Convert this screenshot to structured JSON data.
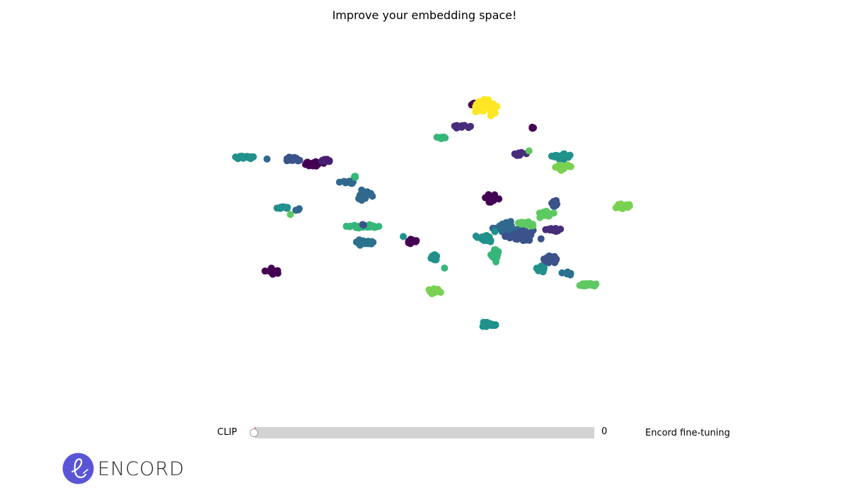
{
  "title": "Improve your embedding space!",
  "slider": {
    "left_label": "CLIP",
    "right_label": "Encord fine-tuning",
    "value": "0",
    "fraction": 0,
    "marker_color": "#d62728"
  },
  "logo": {
    "wordmark": "ENCORD",
    "brand_color": "#5b55d6"
  },
  "chart_data": {
    "type": "scatter",
    "title": "Improve your embedding space!",
    "axes_visible": false,
    "colormap": "viridis",
    "xlim": [
      0,
      100
    ],
    "ylim": [
      0,
      100
    ],
    "clusters": [
      {
        "color": "#440154",
        "cx": 58.0,
        "cy": 86.4,
        "sx": 0.5,
        "sy": 0.6,
        "n": 8
      },
      {
        "color": "#fde725",
        "cx": 59.6,
        "cy": 86.0,
        "sx": 1.3,
        "sy": 1.3,
        "n": 55
      },
      {
        "color": "#472d7b",
        "cx": 56.1,
        "cy": 80.3,
        "sx": 1.1,
        "sy": 0.4,
        "n": 10
      },
      {
        "color": "#35b779",
        "cx": 53.0,
        "cy": 77.1,
        "sx": 0.9,
        "sy": 0.3,
        "n": 7
      },
      {
        "color": "#440154",
        "cx": 67.3,
        "cy": 79.8,
        "sx": 0.3,
        "sy": 0.2,
        "n": 5
      },
      {
        "color": "#21918c",
        "cx": 21.0,
        "cy": 71.5,
        "sx": 1.5,
        "sy": 0.3,
        "n": 22
      },
      {
        "color": "#31688e",
        "cx": 24.7,
        "cy": 71.2,
        "sx": 0.2,
        "sy": 0.2,
        "n": 1
      },
      {
        "color": "#3b528b",
        "cx": 29.0,
        "cy": 70.9,
        "sx": 1.0,
        "sy": 0.5,
        "n": 18
      },
      {
        "color": "#440154",
        "cx": 32.0,
        "cy": 69.6,
        "sx": 1.4,
        "sy": 0.5,
        "n": 25
      },
      {
        "color": "#481f70",
        "cx": 34.2,
        "cy": 70.4,
        "sx": 1.0,
        "sy": 0.4,
        "n": 12
      },
      {
        "color": "#472d7b",
        "cx": 65.4,
        "cy": 72.4,
        "sx": 0.7,
        "sy": 0.4,
        "n": 14
      },
      {
        "color": "#5ec962",
        "cx": 66.9,
        "cy": 73.5,
        "sx": 0.2,
        "sy": 0.2,
        "n": 1
      },
      {
        "color": "#21918c",
        "cx": 71.8,
        "cy": 71.8,
        "sx": 1.2,
        "sy": 0.6,
        "n": 20
      },
      {
        "color": "#7ad151",
        "cx": 72.3,
        "cy": 68.7,
        "sx": 1.0,
        "sy": 0.7,
        "n": 20
      },
      {
        "color": "#31688e",
        "cx": 37.8,
        "cy": 64.5,
        "sx": 1.0,
        "sy": 0.5,
        "n": 14
      },
      {
        "color": "#35b779",
        "cx": 38.9,
        "cy": 66.0,
        "sx": 0.3,
        "sy": 0.3,
        "n": 3
      },
      {
        "color": "#31688e",
        "cx": 40.2,
        "cy": 61.0,
        "sx": 1.0,
        "sy": 1.1,
        "n": 28
      },
      {
        "color": "#21918c",
        "cx": 27.4,
        "cy": 57.3,
        "sx": 0.8,
        "sy": 0.3,
        "n": 10
      },
      {
        "color": "#31688e",
        "cx": 29.8,
        "cy": 56.6,
        "sx": 0.3,
        "sy": 0.3,
        "n": 4
      },
      {
        "color": "#5ec962",
        "cx": 28.5,
        "cy": 55.2,
        "sx": 0.2,
        "sy": 0.2,
        "n": 1
      },
      {
        "color": "#440154",
        "cx": 60.6,
        "cy": 59.9,
        "sx": 0.8,
        "sy": 0.8,
        "n": 26
      },
      {
        "color": "#3b528b",
        "cx": 71.0,
        "cy": 58.4,
        "sx": 0.6,
        "sy": 0.9,
        "n": 14
      },
      {
        "color": "#5ec962",
        "cx": 69.5,
        "cy": 55.3,
        "sx": 1.1,
        "sy": 0.8,
        "n": 22
      },
      {
        "color": "#7ad151",
        "cx": 82.2,
        "cy": 57.6,
        "sx": 1.0,
        "sy": 0.6,
        "n": 22
      },
      {
        "color": "#35b779",
        "cx": 39.8,
        "cy": 52.0,
        "sx": 2.0,
        "sy": 0.4,
        "n": 32
      },
      {
        "color": "#3b528b",
        "cx": 40.0,
        "cy": 52.5,
        "sx": 0.2,
        "sy": 0.2,
        "n": 2
      },
      {
        "color": "#2c728e",
        "cx": 40.2,
        "cy": 47.5,
        "sx": 1.2,
        "sy": 0.6,
        "n": 26
      },
      {
        "color": "#440154",
        "cx": 47.8,
        "cy": 47.7,
        "sx": 0.7,
        "sy": 1.0,
        "n": 16
      },
      {
        "color": "#21918c",
        "cx": 46.5,
        "cy": 49.2,
        "sx": 0.2,
        "sy": 0.2,
        "n": 1
      },
      {
        "color": "#21918c",
        "cx": 51.3,
        "cy": 43.2,
        "sx": 0.7,
        "sy": 0.9,
        "n": 14
      },
      {
        "color": "#35b779",
        "cx": 53.3,
        "cy": 40.3,
        "sx": 0.2,
        "sy": 0.2,
        "n": 1
      },
      {
        "color": "#440154",
        "cx": 25.6,
        "cy": 39.4,
        "sx": 0.7,
        "sy": 0.6,
        "n": 18
      },
      {
        "color": "#31688e",
        "cx": 63.5,
        "cy": 51.5,
        "sx": 2.4,
        "sy": 1.5,
        "n": 55
      },
      {
        "color": "#3b528b",
        "cx": 66.0,
        "cy": 49.2,
        "sx": 2.0,
        "sy": 1.6,
        "n": 40
      },
      {
        "color": "#21918c",
        "cx": 60.0,
        "cy": 48.6,
        "sx": 1.5,
        "sy": 1.1,
        "n": 24
      },
      {
        "color": "#35b779",
        "cx": 61.5,
        "cy": 43.9,
        "sx": 0.6,
        "sy": 1.3,
        "n": 20
      },
      {
        "color": "#5ec962",
        "cx": 66.5,
        "cy": 52.5,
        "sx": 1.2,
        "sy": 0.7,
        "n": 14
      },
      {
        "color": "#472d7b",
        "cx": 70.5,
        "cy": 51.0,
        "sx": 1.0,
        "sy": 0.6,
        "n": 16
      },
      {
        "color": "#3b528b",
        "cx": 70.3,
        "cy": 42.8,
        "sx": 1.0,
        "sy": 0.9,
        "n": 30
      },
      {
        "color": "#21918c",
        "cx": 68.8,
        "cy": 40.0,
        "sx": 1.0,
        "sy": 0.6,
        "n": 16
      },
      {
        "color": "#2c728e",
        "cx": 73.0,
        "cy": 38.8,
        "sx": 0.7,
        "sy": 0.3,
        "n": 7
      },
      {
        "color": "#7ad151",
        "cx": 51.5,
        "cy": 33.6,
        "sx": 0.7,
        "sy": 0.7,
        "n": 22
      },
      {
        "color": "#5ec962",
        "cx": 76.2,
        "cy": 35.4,
        "sx": 1.2,
        "sy": 0.4,
        "n": 20
      },
      {
        "color": "#21918c",
        "cx": 60.2,
        "cy": 24.3,
        "sx": 1.0,
        "sy": 0.6,
        "n": 22
      }
    ]
  }
}
